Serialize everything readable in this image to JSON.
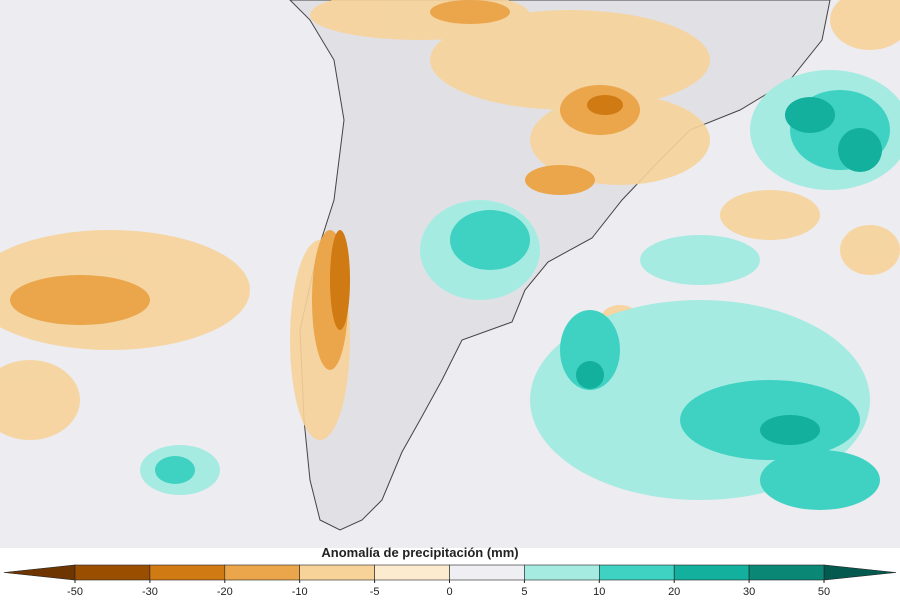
{
  "map": {
    "colorbar": {
      "title": "Anomalía de precipitación (mm)",
      "ticks": [
        -50,
        -30,
        -20,
        -10,
        -5,
        0,
        5,
        10,
        20,
        30,
        50
      ],
      "colors": [
        "#9a4f00",
        "#cf7a12",
        "#eba54a",
        "#f7d39a",
        "#fdebd0",
        "#eeeef3",
        "#a6ebe2",
        "#3fd2c3",
        "#13b09d",
        "#0b8776"
      ],
      "under_color": "#6e3500",
      "over_color": "#045a4e"
    }
  }
}
